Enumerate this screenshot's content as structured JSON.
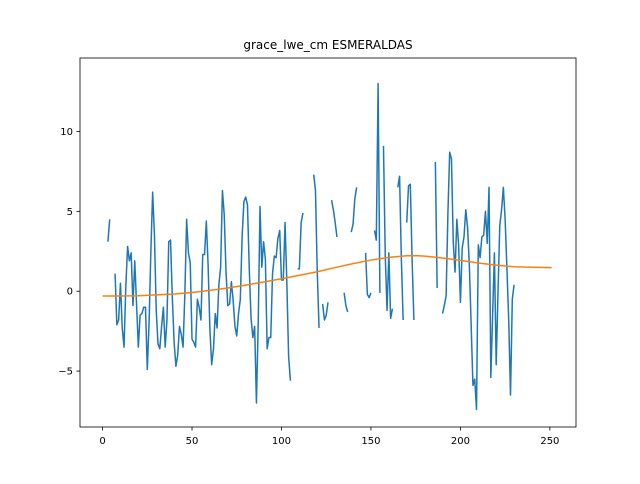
{
  "chart_data": {
    "type": "line",
    "title": "grace_lwe_cm ESMERALDAS",
    "xlabel": "",
    "ylabel": "",
    "xlim": [
      -12.6,
      264.6
    ],
    "ylim": [
      -8.5,
      14.6
    ],
    "xticks": [
      0,
      50,
      100,
      150,
      200,
      250
    ],
    "yticks": [
      -5,
      0,
      5,
      10
    ],
    "grid": false,
    "series": [
      {
        "color": "#1f77b4",
        "segments": [
          [
            [
              3,
              3.1
            ],
            [
              4,
              4.5
            ]
          ],
          [
            [
              7,
              1.1
            ],
            [
              8,
              -2.1
            ],
            [
              9,
              -1.8
            ],
            [
              10,
              0.5
            ],
            [
              11,
              -2.3
            ],
            [
              12,
              -3.5
            ],
            [
              13,
              0.3
            ],
            [
              14,
              2.8
            ],
            [
              15,
              1.9
            ],
            [
              16,
              2.4
            ],
            [
              17,
              -0.9
            ],
            [
              18,
              1.9
            ],
            [
              19,
              -0.8
            ],
            [
              20,
              -3.5
            ],
            [
              21,
              -1.5
            ],
            [
              22,
              -1.4
            ],
            [
              23,
              -1.0
            ],
            [
              24,
              -1.0
            ],
            [
              25,
              -4.9
            ],
            [
              26,
              -2.0
            ],
            [
              27,
              2.5
            ],
            [
              28,
              6.2
            ],
            [
              29,
              3.5
            ],
            [
              30,
              -1.2
            ],
            [
              31,
              -3.3
            ],
            [
              32,
              -3.6
            ],
            [
              33,
              -2.2
            ],
            [
              34,
              -1.0
            ],
            [
              35,
              -3.5
            ],
            [
              36,
              -1.8
            ],
            [
              37,
              3.1
            ],
            [
              38,
              3.2
            ],
            [
              39,
              -0.4
            ],
            [
              40,
              -3.2
            ],
            [
              41,
              -4.7
            ],
            [
              42,
              -4.0
            ],
            [
              43,
              -2.2
            ],
            [
              44,
              -2.7
            ],
            [
              45,
              -3.5
            ],
            [
              46,
              -0.2
            ],
            [
              47,
              4.5
            ],
            [
              48,
              2.4
            ],
            [
              49,
              1.8
            ],
            [
              50,
              -3.0
            ],
            [
              51,
              -3.2
            ],
            [
              52,
              -3.5
            ],
            [
              53,
              -0.5
            ],
            [
              54,
              -1.0
            ],
            [
              55,
              -1.8
            ],
            [
              56,
              2.3
            ],
            [
              57,
              2.3
            ],
            [
              58,
              4.4
            ],
            [
              59,
              1.6
            ],
            [
              60,
              -2.4
            ],
            [
              61,
              -4.6
            ],
            [
              62,
              -3.6
            ],
            [
              63,
              -1.4
            ],
            [
              64,
              -2.3
            ],
            [
              65,
              0.4
            ],
            [
              66,
              1.5
            ],
            [
              67,
              6.3
            ],
            [
              68,
              4.8
            ],
            [
              69,
              1.2
            ],
            [
              70,
              -0.9
            ],
            [
              71,
              -0.8
            ],
            [
              72,
              0.6
            ],
            [
              73,
              -0.6
            ],
            [
              74,
              -2.2
            ],
            [
              75,
              -2.8
            ],
            [
              76,
              -1.4
            ],
            [
              77,
              -0.5
            ],
            [
              78,
              3.4
            ],
            [
              79,
              5.6
            ],
            [
              80,
              5.9
            ],
            [
              81,
              5.4
            ],
            [
              82,
              1.4
            ],
            [
              83,
              -1.7
            ],
            [
              84,
              -2.9
            ],
            [
              85,
              -2.2
            ],
            [
              86,
              -7.0
            ],
            [
              87,
              -2.0
            ],
            [
              88,
              5.3
            ],
            [
              89,
              1.5
            ],
            [
              90,
              3.1
            ],
            [
              91,
              2.0
            ],
            [
              92,
              -3.6
            ],
            [
              93,
              -2.9
            ],
            [
              94,
              -2.9
            ],
            [
              95,
              1.1
            ],
            [
              96,
              2.2
            ],
            [
              97,
              2.1
            ],
            [
              98,
              3.3
            ],
            [
              99,
              3.8
            ],
            [
              100,
              0.7
            ],
            [
              101,
              0.7
            ],
            [
              102,
              4.3
            ],
            [
              103,
              0.5
            ],
            [
              104,
              -4.1
            ],
            [
              105,
              -5.6
            ]
          ],
          [
            [
              109,
              1.4
            ],
            [
              110,
              1.4
            ],
            [
              111,
              4.3
            ],
            [
              112,
              4.9
            ]
          ],
          [
            [
              118,
              7.3
            ],
            [
              119,
              6.3
            ],
            [
              120,
              1.2
            ],
            [
              121,
              -2.3
            ]
          ],
          [
            [
              123,
              -0.8
            ],
            [
              124,
              -1.8
            ],
            [
              125,
              -1.5
            ],
            [
              126,
              -0.7
            ]
          ],
          [
            [
              128,
              5.7
            ],
            [
              129,
              5.1
            ],
            [
              130,
              4.3
            ],
            [
              131,
              3.4
            ]
          ],
          [
            [
              135,
              -0.1
            ],
            [
              136,
              -0.9
            ],
            [
              137,
              -1.3
            ]
          ],
          [
            [
              139,
              3.7
            ],
            [
              140,
              4.2
            ],
            [
              141,
              5.8
            ],
            [
              142,
              6.5
            ]
          ],
          [
            [
              147,
              2.4
            ],
            [
              148,
              -0.2
            ],
            [
              149,
              -0.4
            ],
            [
              150,
              -0.1
            ]
          ],
          [
            [
              152,
              3.8
            ],
            [
              153,
              3.2
            ],
            [
              154,
              13.0
            ],
            [
              155,
              -0.1
            ]
          ],
          [
            [
              157,
              9.1
            ],
            [
              158,
              2.2
            ],
            [
              159,
              -1.2
            ],
            [
              160,
              2.4
            ],
            [
              161,
              -1.7
            ],
            [
              162,
              -1.1
            ]
          ],
          [
            [
              165,
              6.5
            ],
            [
              166,
              7.2
            ],
            [
              167,
              2.0
            ],
            [
              168,
              -1.8
            ]
          ],
          [
            [
              170,
              4.3
            ],
            [
              171,
              6.6
            ],
            [
              172,
              6.7
            ],
            [
              173,
              2.0
            ],
            [
              174,
              -1.8
            ]
          ],
          [
            [
              186,
              8.1
            ],
            [
              187,
              0.2
            ]
          ],
          [
            [
              190,
              -1.4
            ],
            [
              191,
              -0.9
            ],
            [
              192,
              -0.3
            ],
            [
              193,
              4.8
            ],
            [
              194,
              8.7
            ],
            [
              195,
              8.3
            ],
            [
              196,
              3.1
            ],
            [
              197,
              1.2
            ],
            [
              198,
              4.5
            ],
            [
              199,
              2.9
            ],
            [
              200,
              -0.7
            ],
            [
              201,
              2.7
            ],
            [
              202,
              3.4
            ],
            [
              203,
              5.1
            ],
            [
              204,
              4.0
            ],
            [
              205,
              1.6
            ],
            [
              206,
              -2.1
            ],
            [
              207,
              -5.9
            ],
            [
              208,
              -5.5
            ],
            [
              209,
              -7.4
            ],
            [
              210,
              2.9
            ],
            [
              211,
              2.1
            ],
            [
              212,
              3.4
            ],
            [
              213,
              3.5
            ],
            [
              214,
              5.0
            ],
            [
              215,
              3.0
            ],
            [
              216,
              6.5
            ],
            [
              217,
              -5.4
            ],
            [
              218,
              -1.5
            ],
            [
              219,
              2.4
            ],
            [
              220,
              -4.6
            ],
            [
              221,
              -0.1
            ],
            [
              222,
              4.1
            ],
            [
              223,
              5.1
            ],
            [
              224,
              6.5
            ],
            [
              225,
              4.5
            ],
            [
              226,
              1.4
            ],
            [
              227,
              -1.8
            ],
            [
              228,
              -6.5
            ],
            [
              229,
              -0.5
            ],
            [
              230,
              0.4
            ]
          ]
        ]
      },
      {
        "color": "#ff7f0e",
        "points": [
          [
            0,
            -0.3
          ],
          [
            10,
            -0.3
          ],
          [
            20,
            -0.28
          ],
          [
            30,
            -0.23
          ],
          [
            40,
            -0.17
          ],
          [
            50,
            -0.08
          ],
          [
            60,
            0.05
          ],
          [
            70,
            0.2
          ],
          [
            80,
            0.38
          ],
          [
            90,
            0.58
          ],
          [
            100,
            0.78
          ],
          [
            110,
            1.0
          ],
          [
            120,
            1.22
          ],
          [
            130,
            1.48
          ],
          [
            140,
            1.73
          ],
          [
            150,
            1.95
          ],
          [
            160,
            2.12
          ],
          [
            170,
            2.22
          ],
          [
            175,
            2.23
          ],
          [
            180,
            2.2
          ],
          [
            190,
            2.08
          ],
          [
            200,
            1.93
          ],
          [
            210,
            1.77
          ],
          [
            220,
            1.63
          ],
          [
            230,
            1.53
          ],
          [
            240,
            1.5
          ],
          [
            251,
            1.48
          ]
        ]
      }
    ]
  }
}
